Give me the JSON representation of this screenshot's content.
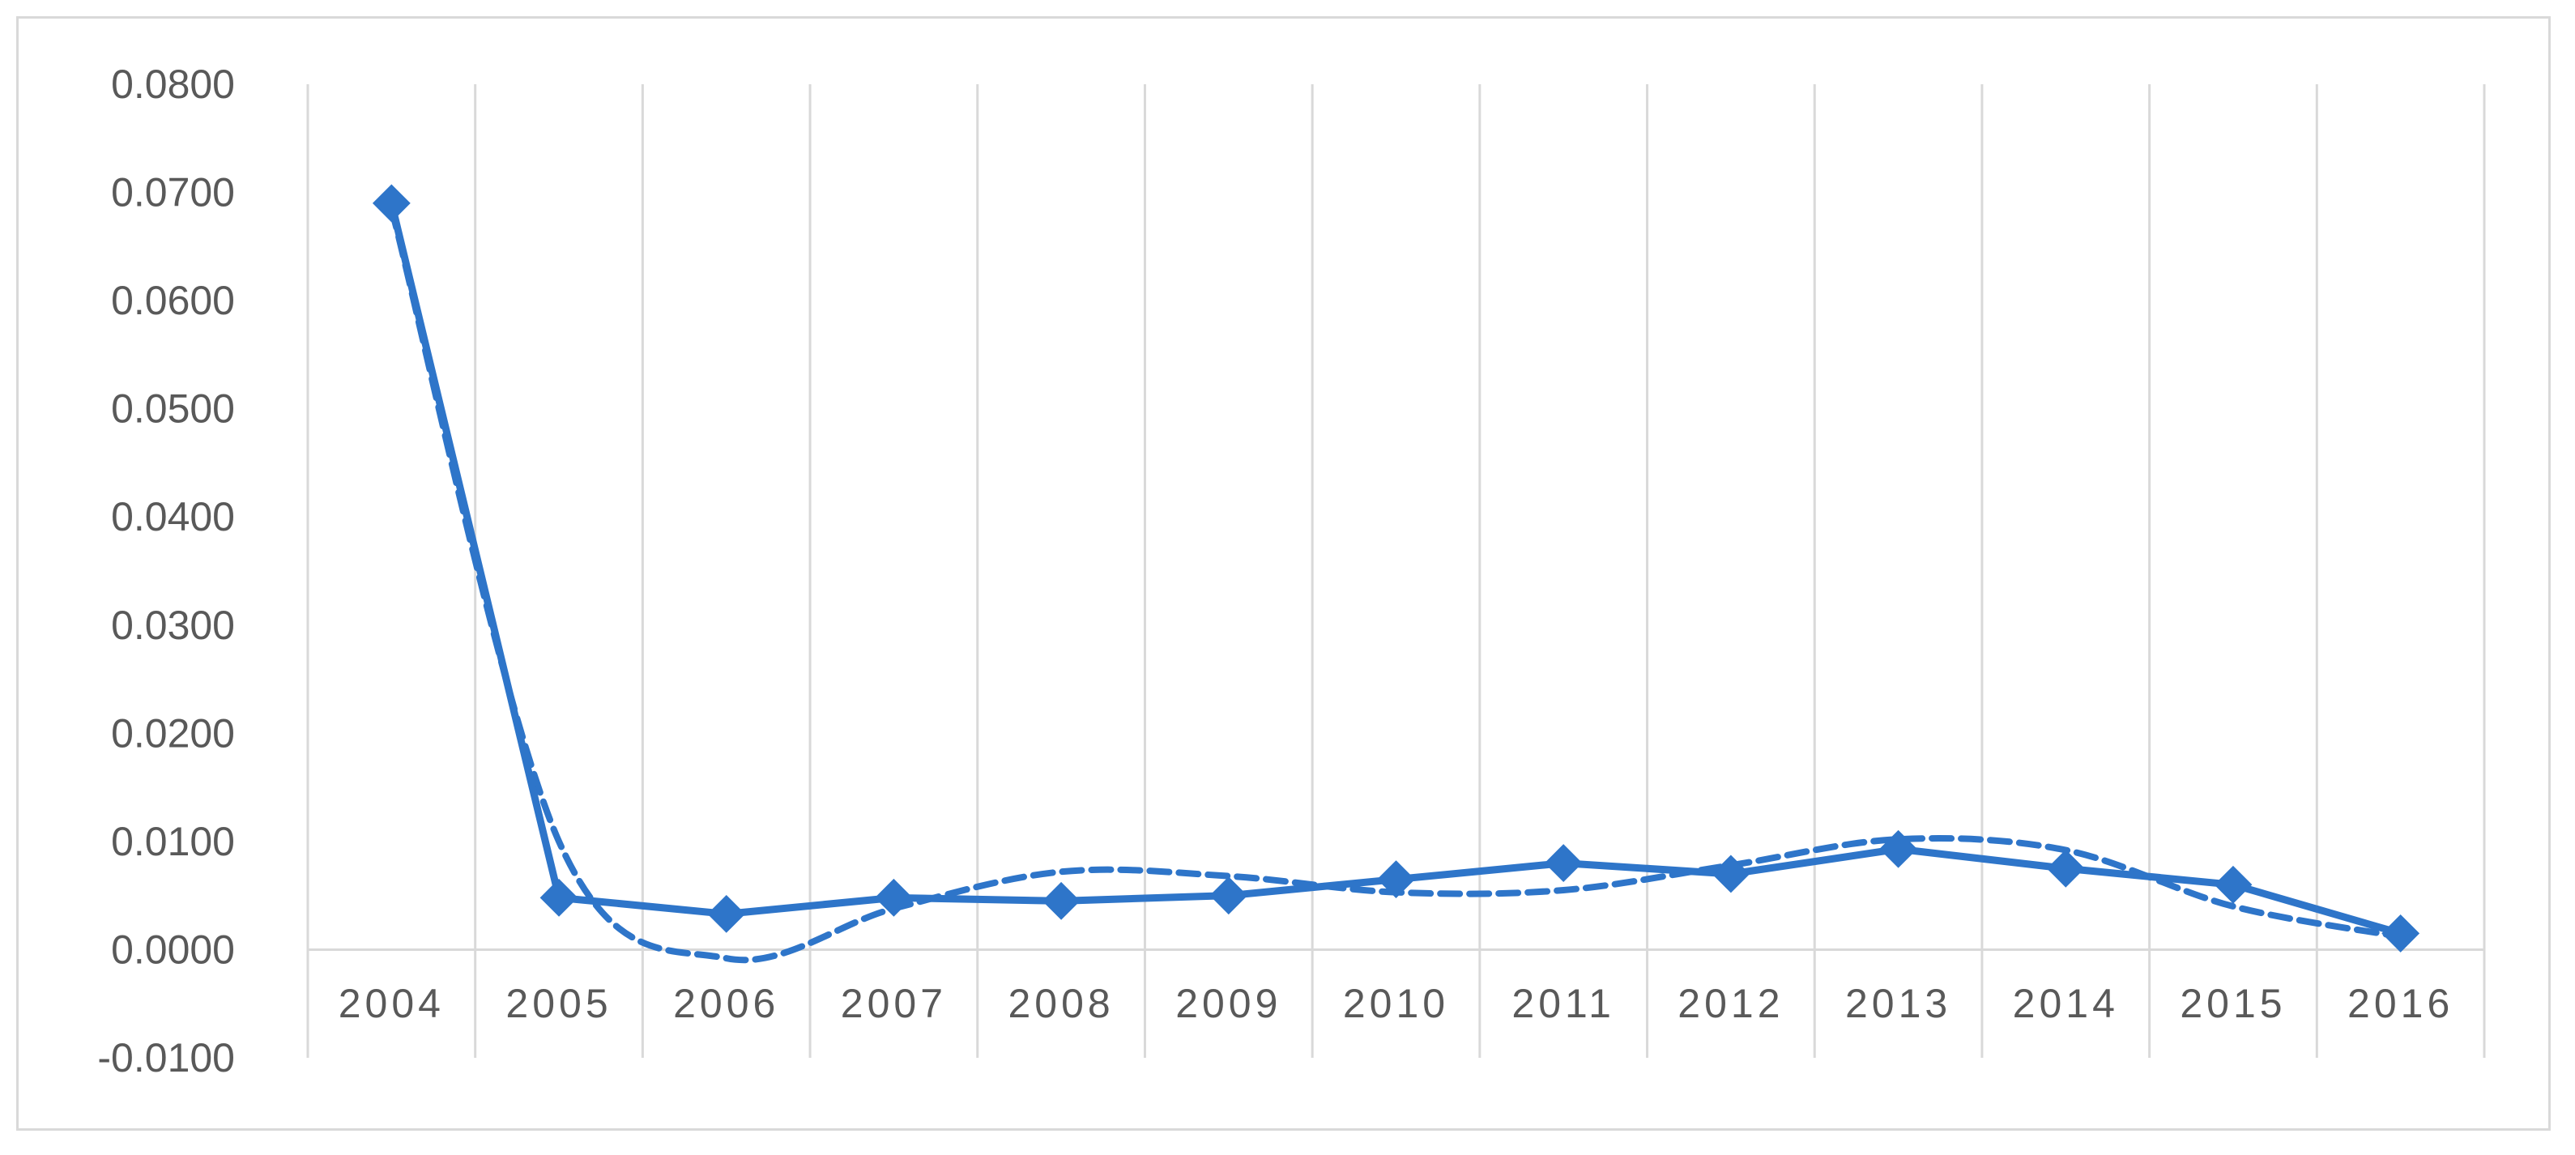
{
  "chart_data": {
    "type": "line",
    "title": "",
    "xlabel": "",
    "ylabel": "",
    "categories": [
      "2004",
      "2005",
      "2006",
      "2007",
      "2008",
      "2009",
      "2010",
      "2011",
      "2012",
      "2013",
      "2014",
      "2015",
      "2016"
    ],
    "series": [
      {
        "values": [
          0.069,
          0.0048,
          0.0033,
          0.0048,
          0.0045,
          0.005,
          0.0065,
          0.008,
          0.007,
          0.0093,
          0.0075,
          0.006,
          0.0015
        ],
        "line_style": "solid",
        "marker": "diamond"
      },
      {
        "values": [
          0.0685,
          0.01,
          -0.0008,
          0.0038,
          0.0072,
          0.0068,
          0.0053,
          0.0055,
          0.0078,
          0.0102,
          0.0092,
          0.004,
          0.0012
        ],
        "line_style": "dashed",
        "smoothed": true
      }
    ],
    "ylim": [
      -0.01,
      0.08
    ],
    "yticks": [
      "-0.0100",
      "0.0000",
      "0.0100",
      "0.0200",
      "0.0300",
      "0.0400",
      "0.0500",
      "0.0600",
      "0.0700",
      "0.0800"
    ],
    "grid": "vertical",
    "legend": "none",
    "colors": {
      "series": "#2e75c9",
      "grid": "#d9d9d9",
      "axis": "#d9d9d9",
      "text": "#595959"
    }
  }
}
